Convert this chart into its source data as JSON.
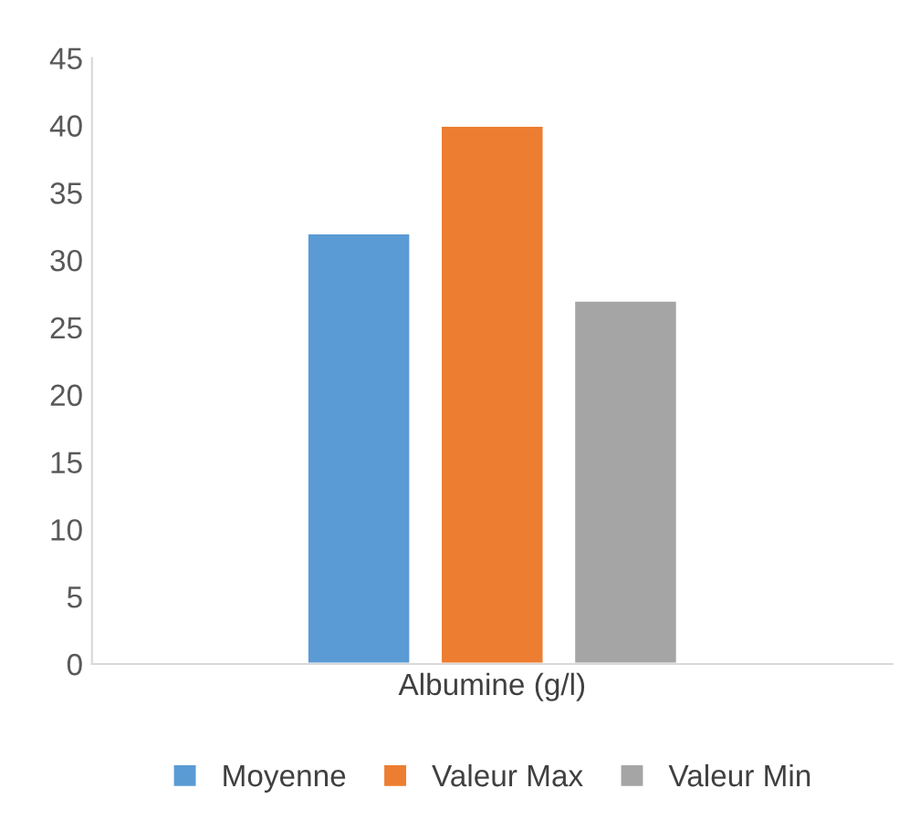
{
  "chart_data": {
    "type": "bar",
    "categories": [
      "Albumine (g/l)"
    ],
    "series": [
      {
        "name": "Moyenne",
        "color": "#5b9bd5",
        "values": [
          32
        ]
      },
      {
        "name": "Valeur Max",
        "color": "#ed7d31",
        "values": [
          40
        ]
      },
      {
        "name": "Valeur Min",
        "color": "#a5a5a5",
        "values": [
          27
        ]
      }
    ],
    "ylim": [
      0,
      45
    ],
    "yticks": [
      0,
      5,
      10,
      15,
      20,
      25,
      30,
      35,
      40,
      45
    ],
    "grid": false,
    "legend": "bottom"
  }
}
